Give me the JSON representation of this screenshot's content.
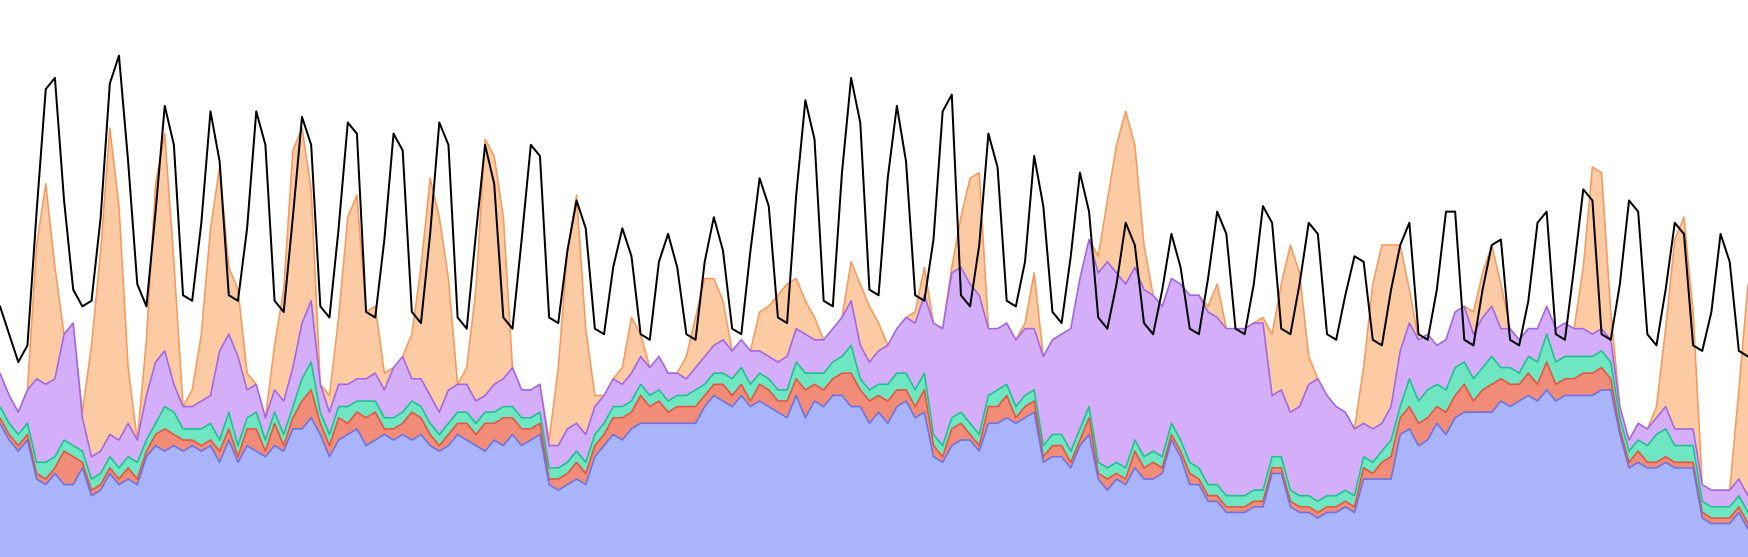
{
  "chart_data": {
    "type": "area",
    "stacked": true,
    "x_count": 192,
    "ylim": [
      0,
      100
    ],
    "axes_visible": false,
    "grid": false,
    "legend": "none",
    "series": [
      {
        "key": "s1",
        "fill": "#aab4fa",
        "stroke": "#6b72e6",
        "values": [
          24,
          21,
          19,
          21,
          14,
          13,
          15,
          13,
          13,
          16,
          11,
          12,
          15,
          13,
          14,
          13,
          18,
          20,
          19,
          20,
          19,
          20,
          19,
          20,
          17,
          21,
          17,
          20,
          19,
          18,
          20,
          19,
          23,
          23,
          25,
          22,
          18,
          21,
          22,
          23,
          20,
          21,
          22,
          21,
          22,
          21,
          22,
          20,
          19,
          20,
          22,
          21,
          20,
          19,
          21,
          20,
          22,
          20,
          21,
          22,
          13,
          12,
          13,
          14,
          13,
          18,
          20,
          22,
          21,
          23,
          24,
          24,
          24,
          24,
          24,
          24,
          24,
          27,
          29,
          28,
          27,
          29,
          27,
          28,
          27,
          26,
          25,
          29,
          25,
          28,
          27,
          29,
          29,
          27,
          27,
          24,
          26,
          24,
          27,
          28,
          25,
          26,
          18,
          17,
          20,
          21,
          21,
          19,
          24,
          24,
          25,
          24,
          25,
          26,
          17,
          18,
          18,
          16,
          20,
          22,
          14,
          12,
          14,
          13,
          16,
          14,
          14,
          15,
          21,
          18,
          13,
          13,
          10,
          10,
          8,
          8,
          8,
          9,
          9,
          15,
          15,
          9,
          8,
          8,
          7,
          8,
          8,
          9,
          8,
          14,
          14,
          14,
          14,
          22,
          23,
          20,
          21,
          24,
          22,
          25,
          26,
          26,
          26,
          26,
          28,
          27,
          28,
          29,
          28,
          30,
          28,
          29,
          29,
          29,
          29,
          30,
          30,
          22,
          16,
          17,
          16,
          16,
          17,
          16,
          16,
          16,
          7,
          6,
          6,
          6,
          8,
          5
        ]
      },
      {
        "key": "s2",
        "fill": "#f08c78",
        "stroke": "#e2553f",
        "values": [
          1,
          1,
          1,
          1,
          1,
          1,
          1,
          6,
          5,
          1,
          1,
          1,
          1,
          1,
          2,
          1,
          1,
          2,
          4,
          2,
          2,
          1,
          1,
          1,
          2,
          2,
          1,
          3,
          4,
          1,
          4,
          1,
          2,
          5,
          5,
          2,
          2,
          4,
          2,
          3,
          5,
          5,
          1,
          2,
          2,
          5,
          3,
          2,
          1,
          2,
          2,
          3,
          2,
          5,
          3,
          5,
          3,
          3,
          2,
          2,
          1,
          2,
          2,
          3,
          2,
          2,
          2,
          3,
          4,
          3,
          5,
          3,
          4,
          2,
          3,
          3,
          3,
          2,
          2,
          3,
          2,
          2,
          1,
          3,
          3,
          2,
          3,
          3,
          5,
          3,
          3,
          3,
          4,
          6,
          3,
          4,
          3,
          4,
          3,
          2,
          2,
          4,
          2,
          1,
          3,
          3,
          1,
          1,
          3,
          3,
          4,
          1,
          2,
          2,
          1,
          2,
          2,
          1,
          1,
          3,
          1,
          2,
          1,
          1,
          3,
          2,
          3,
          1,
          1,
          1,
          2,
          1,
          1,
          1,
          1,
          1,
          1,
          1,
          1,
          1,
          1,
          1,
          1,
          1,
          1,
          1,
          1,
          1,
          1,
          2,
          1,
          3,
          4,
          3,
          4,
          4,
          4,
          3,
          4,
          4,
          5,
          2,
          4,
          5,
          4,
          4,
          3,
          4,
          3,
          5,
          3,
          3,
          3,
          4,
          4,
          4,
          2,
          1,
          1,
          2,
          1,
          1,
          1,
          1,
          1,
          1,
          1,
          1,
          1,
          1,
          1,
          1
        ]
      },
      {
        "key": "s3",
        "fill": "#6ee6c2",
        "stroke": "#1fbf8f",
        "values": [
          2,
          2,
          2,
          2,
          2,
          3,
          2,
          2,
          2,
          2,
          2,
          2,
          2,
          2,
          2,
          3,
          2,
          2,
          4,
          4,
          2,
          2,
          3,
          3,
          2,
          3,
          2,
          2,
          3,
          2,
          2,
          2,
          2,
          4,
          5,
          2,
          2,
          2,
          3,
          2,
          3,
          2,
          2,
          2,
          2,
          2,
          2,
          2,
          2,
          2,
          2,
          2,
          2,
          2,
          2,
          2,
          2,
          2,
          2,
          2,
          2,
          2,
          2,
          2,
          2,
          2,
          2,
          2,
          2,
          2,
          2,
          2,
          2,
          2,
          2,
          2,
          3,
          2,
          2,
          2,
          3,
          3,
          3,
          2,
          2,
          2,
          2,
          3,
          3,
          2,
          3,
          3,
          3,
          5,
          2,
          2,
          2,
          3,
          3,
          3,
          3,
          3,
          2,
          2,
          2,
          2,
          2,
          2,
          2,
          3,
          2,
          2,
          2,
          2,
          2,
          2,
          2,
          2,
          2,
          2,
          2,
          2,
          2,
          2,
          2,
          2,
          2,
          2,
          2,
          2,
          2,
          2,
          2,
          2,
          2,
          2,
          2,
          2,
          2,
          2,
          2,
          2,
          2,
          2,
          2,
          2,
          2,
          2,
          2,
          2,
          2,
          2,
          3,
          2,
          5,
          4,
          5,
          4,
          4,
          5,
          4,
          4,
          4,
          5,
          2,
          3,
          2,
          3,
          4,
          5,
          4,
          4,
          4,
          3,
          3,
          3,
          3,
          2,
          2,
          2,
          3,
          5,
          5,
          3,
          3,
          3,
          2,
          2,
          2,
          2,
          2,
          2
        ]
      },
      {
        "key": "s4",
        "fill": "#d4aef8",
        "stroke": "#a066e6",
        "values": [
          6,
          5,
          4,
          6,
          15,
          14,
          14,
          19,
          22,
          6,
          4,
          4,
          4,
          5,
          6,
          4,
          8,
          11,
          10,
          5,
          4,
          4,
          5,
          5,
          16,
          14,
          16,
          5,
          5,
          4,
          4,
          6,
          7,
          10,
          11,
          5,
          4,
          4,
          4,
          4,
          4,
          5,
          5,
          9,
          10,
          4,
          5,
          5,
          4,
          6,
          5,
          5,
          4,
          3,
          5,
          5,
          7,
          5,
          5,
          5,
          4,
          4,
          6,
          5,
          5,
          5,
          5,
          5,
          4,
          5,
          5,
          5,
          6,
          5,
          4,
          3,
          4,
          5,
          5,
          6,
          5,
          5,
          6,
          4,
          4,
          5,
          6,
          6,
          7,
          6,
          6,
          6,
          7,
          8,
          6,
          5,
          6,
          7,
          8,
          10,
          12,
          14,
          20,
          21,
          26,
          26,
          25,
          25,
          12,
          11,
          11,
          12,
          12,
          11,
          16,
          17,
          18,
          22,
          27,
          30,
          34,
          37,
          34,
          33,
          31,
          30,
          28,
          27,
          26,
          28,
          30,
          31,
          31,
          30,
          30,
          30,
          30,
          30,
          30,
          11,
          12,
          14,
          16,
          20,
          22,
          18,
          16,
          14,
          12,
          6,
          6,
          5,
          6,
          10,
          10,
          11,
          10,
          7,
          9,
          10,
          10,
          8,
          9,
          9,
          7,
          7,
          6,
          5,
          6,
          5,
          6,
          6,
          5,
          5,
          4,
          4,
          4,
          2,
          2,
          3,
          3,
          3,
          4,
          3,
          3,
          3,
          3,
          3,
          3,
          3,
          3,
          3
        ]
      },
      {
        "key": "s5",
        "fill": "#fccba4",
        "stroke": "#f59a5c",
        "values": [
          0,
          0,
          0,
          0,
          24,
          36,
          20,
          0,
          0,
          1,
          20,
          36,
          55,
          42,
          10,
          0,
          10,
          32,
          39,
          22,
          0,
          3,
          12,
          30,
          33,
          12,
          12,
          3,
          0,
          0,
          8,
          20,
          39,
          35,
          20,
          0,
          3,
          12,
          30,
          33,
          12,
          12,
          3,
          0,
          0,
          8,
          20,
          39,
          35,
          20,
          0,
          3,
          20,
          46,
          41,
          29,
          0,
          0,
          0,
          0,
          1,
          14,
          32,
          41,
          19,
          2,
          0,
          0,
          3,
          10,
          4,
          0,
          0,
          0,
          0,
          4,
          9,
          14,
          12,
          7,
          0,
          0,
          0,
          7,
          9,
          12,
          13,
          9,
          6,
          4,
          0,
          0,
          0,
          7,
          11,
          10,
          5,
          0,
          0,
          0,
          2,
          5,
          0,
          0,
          1,
          9,
          19,
          22,
          0,
          0,
          0,
          0,
          1,
          10,
          0,
          0,
          0,
          0,
          0,
          0,
          3,
          11,
          23,
          31,
          22,
          8,
          0,
          0,
          0,
          0,
          0,
          0,
          1,
          6,
          0,
          0,
          0,
          0,
          1,
          11,
          19,
          30,
          24,
          5,
          0,
          0,
          0,
          0,
          0,
          10,
          26,
          32,
          29,
          19,
          6,
          0,
          0,
          0,
          0,
          0,
          0,
          4,
          8,
          11,
          8,
          0,
          0,
          0,
          0,
          0,
          0,
          0,
          0,
          11,
          30,
          28,
          5,
          0,
          0,
          0,
          0,
          2,
          14,
          34,
          38,
          21,
          0,
          0,
          0,
          0,
          16,
          38
        ]
      }
    ],
    "total_line": {
      "key": "total",
      "stroke": "#000000",
      "values": [
        45,
        40,
        35,
        38,
        62,
        84,
        86,
        64,
        48,
        45,
        46,
        61,
        85,
        90,
        71,
        49,
        45,
        62,
        81,
        74,
        47,
        46,
        60,
        80,
        71,
        47,
        46,
        59,
        80,
        74,
        46,
        44,
        61,
        79,
        74,
        45,
        43,
        59,
        78,
        76,
        44,
        43,
        57,
        76,
        73,
        44,
        42,
        58,
        78,
        74,
        43,
        41,
        58,
        74,
        67,
        43,
        41,
        57,
        74,
        72,
        43,
        42,
        55,
        64,
        59,
        41,
        40,
        52,
        59,
        54,
        40,
        39,
        53,
        58,
        52,
        40,
        39,
        53,
        61,
        55,
        41,
        40,
        55,
        68,
        63,
        43,
        42,
        65,
        82,
        75,
        46,
        45,
        69,
        86,
        78,
        48,
        47,
        68,
        81,
        71,
        47,
        46,
        57,
        80,
        83,
        47,
        45,
        56,
        76,
        70,
        46,
        45,
        53,
        72,
        63,
        44,
        42,
        54,
        69,
        62,
        43,
        41,
        49,
        60,
        56,
        42,
        40,
        48,
        58,
        52,
        41,
        40,
        50,
        62,
        58,
        41,
        40,
        49,
        63,
        60,
        41,
        40,
        49,
        60,
        58,
        40,
        39,
        47,
        54,
        53,
        39,
        38,
        48,
        56,
        60,
        40,
        39,
        48,
        62,
        62,
        39,
        38,
        48,
        56,
        57,
        39,
        38,
        46,
        60,
        62,
        40,
        39,
        52,
        66,
        64,
        40,
        39,
        49,
        64,
        62,
        40,
        38,
        48,
        60,
        58,
        38,
        37,
        44,
        58,
        53,
        37,
        36
      ]
    }
  }
}
